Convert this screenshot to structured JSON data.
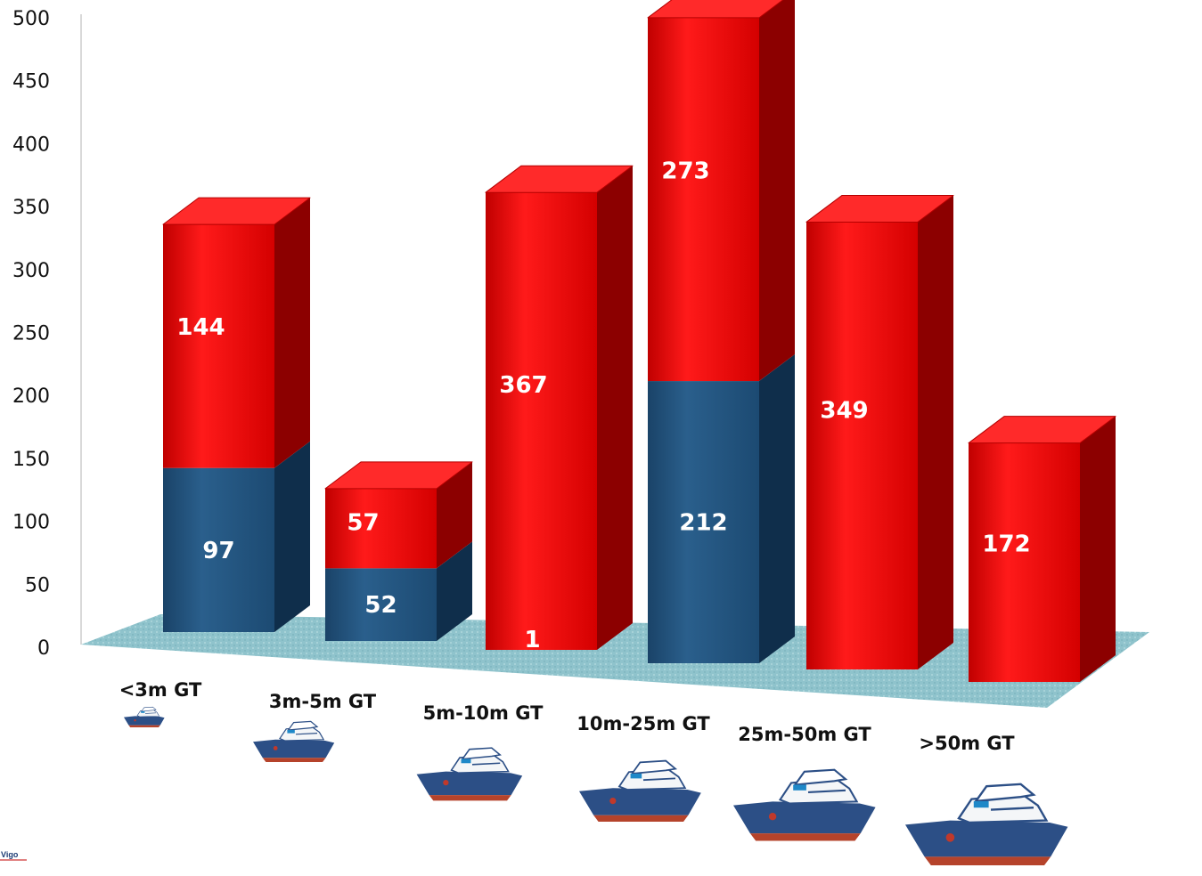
{
  "chart_data": {
    "type": "bar",
    "stacked": true,
    "three_d": true,
    "categories": [
      "<3m GT",
      "3m-5m GT",
      "5m-10m GT",
      "10m-25m GT",
      "25m-50m GT",
      ">50m GT"
    ],
    "series": [
      {
        "values": [
          97,
          52,
          0,
          212,
          0,
          0
        ],
        "color": "#1f4e79"
      },
      {
        "values": [
          144,
          57,
          367,
          273,
          349,
          172
        ],
        "color": "#d90000"
      }
    ],
    "data_labels": [
      [
        "97",
        "52",
        "",
        "212",
        "",
        ""
      ],
      [
        "144",
        "57",
        "367",
        "273",
        "349",
        "172"
      ]
    ],
    "extra_labels": [
      {
        "category": "5m-10m GT",
        "text": "1"
      }
    ],
    "ylim": [
      0,
      500
    ],
    "yticks": [
      "0",
      "50",
      "100",
      "150",
      "200",
      "250",
      "300",
      "350",
      "400",
      "450",
      "500"
    ],
    "floor_color": "#8fc3cc",
    "grid": false,
    "legend": "none",
    "category_icon": "ship-icon"
  },
  "logo_text": "Vigo"
}
